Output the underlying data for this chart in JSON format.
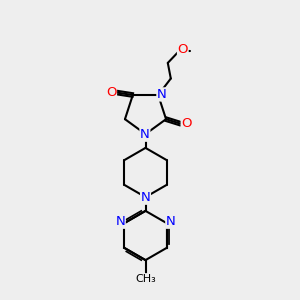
{
  "bg_color": "#eeeeee",
  "bond_color": "#000000",
  "N_color": "#0000ff",
  "O_color": "#ff0000",
  "C_color": "#000000",
  "bond_width": 1.5,
  "font_size": 8.5,
  "dpi": 100,
  "fig_w": 3.0,
  "fig_h": 3.0,
  "xlim": [
    0,
    10
  ],
  "ylim": [
    0,
    10
  ]
}
